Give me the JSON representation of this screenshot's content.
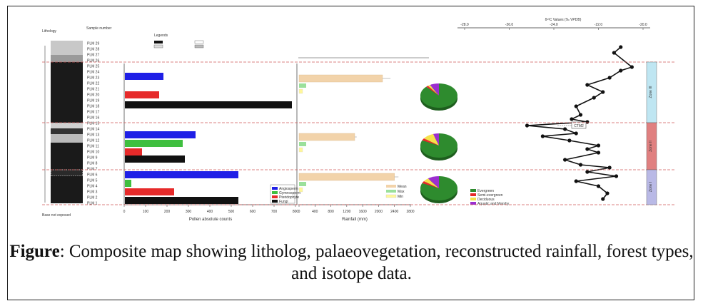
{
  "caption": {
    "label": "Figure",
    "text": ": Composite map showing litholog, palaeovegetation, reconstructed rainfall, forest types, and isotope data."
  },
  "figure": {
    "column_headers": {
      "lithology": "Lithology",
      "sample_number": "Sample number",
      "legend_title": "Legends"
    },
    "isotope_axis_title": "δ¹³C Values (‰ VPDB)",
    "isotope_ticks": [
      "-28.0",
      "-26.0",
      "-24.0",
      "-22.0",
      "-20.0"
    ],
    "pollen_ticks": [
      "0",
      "100",
      "200",
      "300",
      "400",
      "500",
      "600",
      "700",
      "800"
    ],
    "pollen_axis_title": "Pollen absolute counts",
    "rainfall_ticks": [
      "0",
      "400",
      "800",
      "1200",
      "1600",
      "2000",
      "2400",
      "2800"
    ],
    "rainfall_axis_title": "Rainfall (mm)",
    "bottom_left_label": "Base not exposed",
    "event_label": "CTM2",
    "samples": [
      "PLM 29",
      "PLM 28",
      "PLM 27",
      "PLM 26",
      "PLM 25",
      "PLM 24",
      "PLM 23",
      "PLM 22",
      "PLM 21",
      "PLM 20",
      "PLM 19",
      "PLM 18",
      "PLM 17",
      "PLM 16",
      "PLM 15",
      "PLM 14",
      "PLM 13",
      "PLM 12",
      "PLM 11",
      "PLM 10",
      "PLM 9",
      "PLM 8",
      "PLM 7",
      "PLM 6",
      "PLM 5",
      "PLM 4",
      "PLM 3",
      "PLM 2",
      "PLM 1"
    ],
    "pollen_legend": [
      "Angiosperm",
      "Gymnosperm",
      "Pteridophyte",
      "Fungi"
    ],
    "forest_legend": [
      "Evergreen",
      "Semi-evergreen",
      "Deciduous",
      "Aquatic and Marshy"
    ],
    "rainfall_legend": [
      "Mean",
      "Max",
      "Min"
    ],
    "zones": [
      "Zone III",
      "Zone II",
      "Zone I"
    ]
  },
  "chart_data": [
    {
      "type": "bar",
      "xlabel": "Pollen absolute counts",
      "xlim": [
        0,
        800
      ],
      "groups": [
        {
          "zone": "Zone III",
          "values": {
            "Angiosperm": 180,
            "Pteridophyte": 160,
            "Fungi": 780
          }
        },
        {
          "zone": "Zone II",
          "values": {
            "Angiosperm": 330,
            "Gymnosperm": 270,
            "Pteridophyte": 80,
            "Fungi": 280
          }
        },
        {
          "zone": "Zone I",
          "values": {
            "Angiosperm": 530,
            "Gymnosperm": 30,
            "Pteridophyte": 230,
            "Fungi": 530
          }
        }
      ],
      "colors": {
        "Angiosperm": "#1f1fe6",
        "Gymnosperm": "#3fbf3f",
        "Pteridophyte": "#e62a2a",
        "Fungi": "#111111"
      }
    },
    {
      "type": "bar",
      "xlabel": "Rainfall (mm)",
      "xlim": [
        0,
        2800
      ],
      "groups": [
        {
          "zone": "Zone III",
          "mean": 2100,
          "max": 2300,
          "min": 150
        },
        {
          "zone": "Zone II",
          "mean": 1400,
          "max": 1450,
          "min": 150
        },
        {
          "zone": "Zone I",
          "mean": 2400,
          "max": 2500,
          "min": 150
        }
      ],
      "colors": {
        "Mean": "#f2d3aa",
        "Max": "#9be09b",
        "Min": "#fff79a"
      }
    },
    {
      "type": "pie",
      "groups": [
        {
          "zone": "Zone III",
          "values": {
            "Evergreen": 88,
            "Semi-evergreen": 2,
            "Deciduous": 2,
            "Aquatic and Marshy": 8
          }
        },
        {
          "zone": "Zone II",
          "values": {
            "Evergreen": 82,
            "Semi-evergreen": 3,
            "Deciduous": 10,
            "Aquatic and Marshy": 5
          }
        },
        {
          "zone": "Zone I",
          "values": {
            "Evergreen": 82,
            "Semi-evergreen": 3,
            "Deciduous": 5,
            "Aquatic and Marshy": 10
          }
        }
      ],
      "colors": {
        "Evergreen": "#2e8b2e",
        "Semi-evergreen": "#e62a2a",
        "Deciduous": "#f5e14a",
        "Aquatic and Marshy": "#9b2ecf"
      }
    },
    {
      "type": "line",
      "xlabel": "δ¹³C Values (‰ VPDB)",
      "xlim": [
        -28,
        -20
      ],
      "points": [
        [
          -21.0,
          57
        ],
        [
          -21.3,
          65
        ],
        [
          -20.5,
          85
        ],
        [
          -21.0,
          90
        ],
        [
          -21.5,
          100
        ],
        [
          -22.5,
          110
        ],
        [
          -21.8,
          120
        ],
        [
          -22.2,
          128
        ],
        [
          -23.0,
          140
        ],
        [
          -22.8,
          152
        ],
        [
          -23.2,
          158
        ],
        [
          -22.5,
          162
        ],
        [
          -25.2,
          167
        ],
        [
          -23.5,
          172
        ],
        [
          -23.0,
          178
        ],
        [
          -24.5,
          182
        ],
        [
          -23.3,
          188
        ],
        [
          -22.0,
          195
        ],
        [
          -22.5,
          200
        ],
        [
          -22.0,
          205
        ],
        [
          -23.5,
          215
        ],
        [
          -22.8,
          222
        ],
        [
          -21.5,
          226
        ],
        [
          -22.5,
          232
        ],
        [
          -21.2,
          238
        ],
        [
          -23.0,
          245
        ],
        [
          -22.0,
          252
        ],
        [
          -21.6,
          262
        ],
        [
          -21.8,
          270
        ]
      ],
      "color": "#111111"
    }
  ]
}
